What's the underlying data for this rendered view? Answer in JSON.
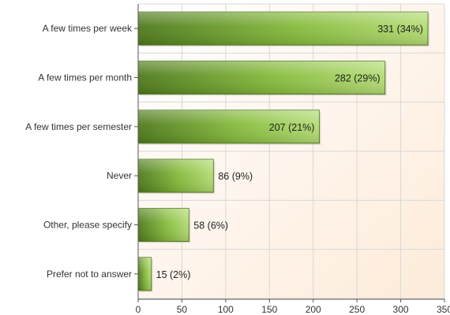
{
  "chart_data": {
    "type": "bar",
    "orientation": "horizontal",
    "categories": [
      "A few times per week",
      "A few times per month",
      "A few times per semester",
      "Never",
      "Other, please specify",
      "Prefer not to answer"
    ],
    "values": [
      331,
      282,
      207,
      86,
      58,
      15
    ],
    "percent_labels": [
      "(34%)",
      "(29%)",
      "(21%)",
      "(9%)",
      "(6%)",
      "(2%)"
    ],
    "xlim": [
      0,
      350
    ],
    "x_ticks": [
      "0",
      "50",
      "100",
      "150",
      "200",
      "250",
      "300",
      "350"
    ],
    "title": "",
    "xlabel": "",
    "ylabel": "",
    "grid": true,
    "legend": "none",
    "colors": {
      "bar_dark": "#4f7a1c",
      "bar_mid": "#86bb3c",
      "bar_light": "#b4dc74",
      "bar_stroke": "#557f22",
      "plot_bg_top": "#ffffff",
      "plot_bg_bottom": "#fdebd9",
      "grid": "#d8d8d8",
      "axis": "#555555"
    }
  }
}
